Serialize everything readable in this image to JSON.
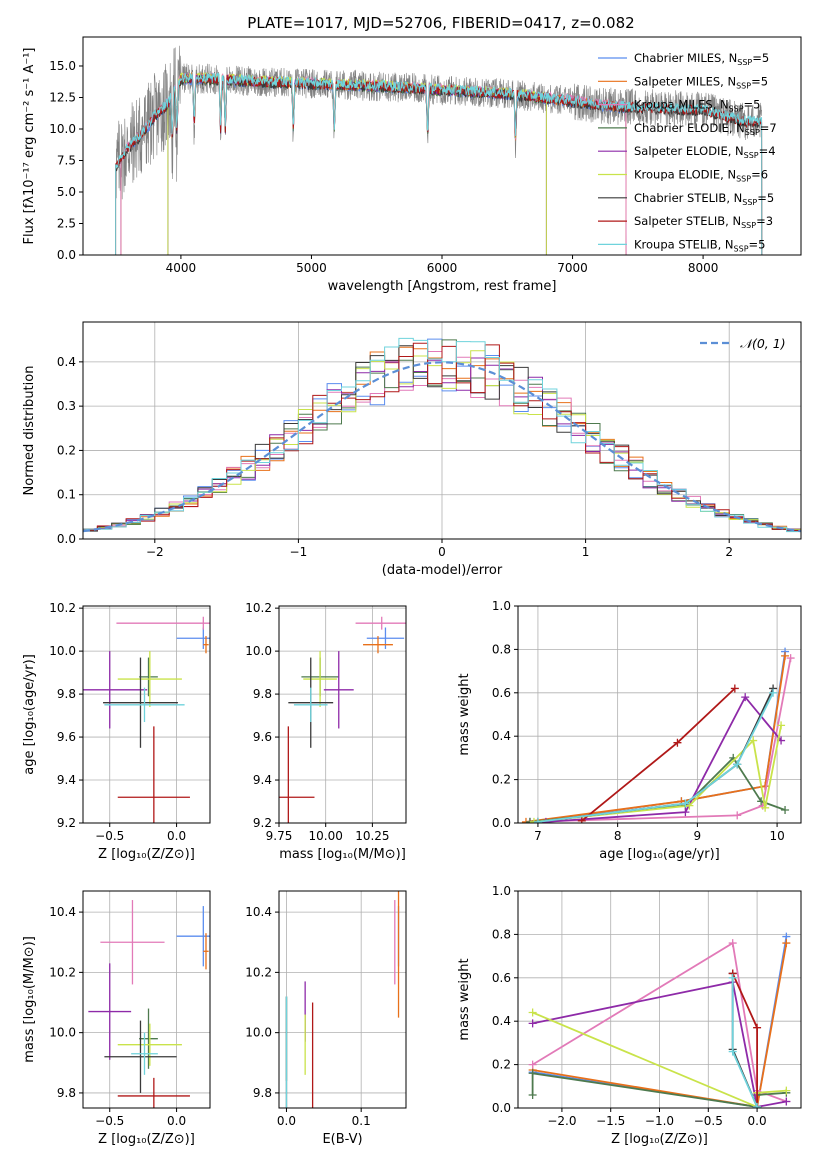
{
  "figure_title": "PLATE=1017, MJD=52706, FIBERID=0417, z=0.082",
  "palette": {
    "Chabrier MILES": "#5b8def",
    "Salpeter MILES": "#e8701a",
    "Kroupa MILES": "#e27ab8",
    "Chabrier ELODIE": "#4e7a4e",
    "Salpeter ELODIE": "#8e2aa8",
    "Kroupa ELODIE": "#c9e34a",
    "Chabrier STELIB": "#3a3a3a",
    "Salpeter STELIB": "#b01818",
    "Kroupa STELIB": "#6fd3dc",
    "data_gray": "#808080",
    "normal_curve": "#5b8fd6",
    "grid": "#b0b0b0"
  },
  "chart_data": [
    {
      "id": "spectrum",
      "type": "line",
      "xlabel": "wavelength [Angstrom, rest frame]",
      "ylabel": "Flux [fλ10⁻¹⁷ erg cm⁻² s⁻¹ A⁻¹]",
      "xlim": [
        3250,
        8750
      ],
      "ylim": [
        0,
        17.3
      ],
      "xticks": [
        4000,
        5000,
        6000,
        7000,
        8000
      ],
      "yticks": [
        0.0,
        2.5,
        5.0,
        7.5,
        10.0,
        12.5,
        15.0
      ],
      "grid": false,
      "legend_position": "top-right",
      "legend": [
        {
          "label": "Chabrier MILES, N",
          "sub": "SSP",
          "suffix": "=5",
          "color": "#5b8def"
        },
        {
          "label": "Salpeter MILES, N",
          "sub": "SSP",
          "suffix": "=5",
          "color": "#e8701a"
        },
        {
          "label": "Kroupa MILES, N",
          "sub": "SSP",
          "suffix": "=5",
          "color": "#e27ab8"
        },
        {
          "label": "Chabrier ELODIE, N",
          "sub": "SSP",
          "suffix": "=7",
          "color": "#4e7a4e"
        },
        {
          "label": "Salpeter ELODIE, N",
          "sub": "SSP",
          "suffix": "=4",
          "color": "#8e2aa8"
        },
        {
          "label": "Kroupa ELODIE, N",
          "sub": "SSP",
          "suffix": "=6",
          "color": "#c9e34a"
        },
        {
          "label": "Chabrier STELIB, N",
          "sub": "SSP",
          "suffix": "=5",
          "color": "#3a3a3a"
        },
        {
          "label": "Salpeter STELIB, N",
          "sub": "SSP",
          "suffix": "=3",
          "color": "#b01818"
        },
        {
          "label": "Kroupa STELIB, N",
          "sub": "SSP",
          "suffix": "=5",
          "color": "#6fd3dc"
        }
      ],
      "continuum": [
        [
          3500,
          7.0
        ],
        [
          3600,
          8.6
        ],
        [
          3700,
          9.6
        ],
        [
          3800,
          11.0
        ],
        [
          3900,
          12.0
        ],
        [
          4000,
          14.0
        ],
        [
          4200,
          14.0
        ],
        [
          4500,
          13.8
        ],
        [
          5000,
          13.6
        ],
        [
          5500,
          13.4
        ],
        [
          6000,
          13.1
        ],
        [
          6500,
          12.8
        ],
        [
          7000,
          12.2
        ],
        [
          7300,
          11.8
        ],
        [
          7500,
          11.7
        ],
        [
          8000,
          11.5
        ],
        [
          8300,
          10.6
        ],
        [
          8450,
          10.6
        ]
      ],
      "data_spectrum_range": [
        3500,
        8450
      ],
      "model_ranges": {
        "MILES": [
          3540,
          7410
        ],
        "ELODIE": [
          3900,
          6800
        ],
        "STELIB": [
          3500,
          8450
        ]
      },
      "absorption_lines": [
        3934,
        3969,
        4102,
        4304,
        4340,
        4861,
        5175,
        5890,
        6563,
        8500,
        8542,
        8662
      ]
    },
    {
      "id": "residuals",
      "type": "bar",
      "xlabel": "(data-model)/error",
      "ylabel": "Normed distribution",
      "xlim": [
        -2.5,
        2.5
      ],
      "ylim": [
        0,
        0.49
      ],
      "xticks": [
        -2,
        -1,
        0,
        1,
        2
      ],
      "yticks": [
        0.0,
        0.1,
        0.2,
        0.3,
        0.4
      ],
      "grid": true,
      "legend_position": "top-right",
      "legend_label": "𝒩(0, 1)",
      "normal_mean": 0,
      "normal_sigma": 1,
      "bin_width": 0.1,
      "bin_start": -2.5
    },
    {
      "id": "age_vs_Z",
      "type": "scatter",
      "xlabel": "Z [log₁₀(Z/Z⊙)]",
      "ylabel": "age  [log₁₀(age/yr)]",
      "xlim": [
        -0.7,
        0.25
      ],
      "ylim": [
        9.2,
        10.21
      ],
      "xticks": [
        -0.5,
        0.0
      ],
      "yticks": [
        9.2,
        9.4,
        9.6,
        9.8,
        10.0,
        10.2
      ],
      "grid": true,
      "points": [
        {
          "model": "Chabrier MILES",
          "x": 0.2,
          "y": 10.06,
          "xerr": 0.2,
          "yerr": 0.05
        },
        {
          "model": "Salpeter MILES",
          "x": 0.22,
          "y": 10.03,
          "xerr": 0.02,
          "yerr": 0.04
        },
        {
          "model": "Kroupa MILES",
          "x": 0.2,
          "y": 10.13,
          "xerr": 0.65,
          "yerr": 0.03
        },
        {
          "model": "Chabrier ELODIE",
          "x": -0.21,
          "y": 9.88,
          "xerr": 0.07,
          "yerr": 0.09
        },
        {
          "model": "Salpeter ELODIE",
          "x": -0.5,
          "y": 9.82,
          "xerr": 0.28,
          "yerr": 0.18
        },
        {
          "model": "Kroupa ELODIE",
          "x": -0.2,
          "y": 9.87,
          "xerr": 0.24,
          "yerr": 0.13
        },
        {
          "model": "Chabrier STELIB",
          "x": -0.27,
          "y": 9.76,
          "xerr": 0.28,
          "yerr": 0.21
        },
        {
          "model": "Salpeter STELIB",
          "x": -0.17,
          "y": 9.32,
          "xerr": 0.27,
          "yerr": 0.33
        },
        {
          "model": "Kroupa STELIB",
          "x": -0.24,
          "y": 9.75,
          "xerr": 0.3,
          "yerr": 0.08
        }
      ]
    },
    {
      "id": "age_vs_mass",
      "type": "scatter",
      "xlabel": "mass [log₁₀(M/M⊙)]",
      "ylabel": "",
      "xlim": [
        9.75,
        10.43
      ],
      "ylim": [
        9.2,
        10.21
      ],
      "xticks": [
        9.75,
        10.0,
        10.25
      ],
      "yticks": [
        9.2,
        9.4,
        9.6,
        9.8,
        10.0,
        10.2
      ],
      "grid": true,
      "points": [
        {
          "model": "Chabrier MILES",
          "x": 10.32,
          "y": 10.06,
          "xerr": 0.1,
          "yerr": 0.05
        },
        {
          "model": "Salpeter MILES",
          "x": 10.28,
          "y": 10.03,
          "xerr": 0.08,
          "yerr": 0.04
        },
        {
          "model": "Kroupa MILES",
          "x": 10.3,
          "y": 10.13,
          "xerr": 0.14,
          "yerr": 0.03
        },
        {
          "model": "Chabrier ELODIE",
          "x": 9.97,
          "y": 9.88,
          "xerr": 0.1,
          "yerr": 0.09
        },
        {
          "model": "Salpeter ELODIE",
          "x": 10.07,
          "y": 9.82,
          "xerr": 0.08,
          "yerr": 0.18
        },
        {
          "model": "Kroupa ELODIE",
          "x": 9.97,
          "y": 9.87,
          "xerr": 0.09,
          "yerr": 0.13
        },
        {
          "model": "Chabrier STELIB",
          "x": 9.92,
          "y": 9.76,
          "xerr": 0.12,
          "yerr": 0.21
        },
        {
          "model": "Salpeter STELIB",
          "x": 9.8,
          "y": 9.32,
          "xerr": 0.14,
          "yerr": 0.33
        },
        {
          "model": "Kroupa STELIB",
          "x": 9.92,
          "y": 9.75,
          "xerr": 0.09,
          "yerr": 0.08
        }
      ]
    },
    {
      "id": "weight_vs_age",
      "type": "line",
      "xlabel": "age  [log₁₀(age/yr)]",
      "ylabel": "mass weight",
      "xlim": [
        6.75,
        10.3
      ],
      "ylim": [
        0,
        1.0
      ],
      "xticks": [
        7,
        8,
        9,
        10
      ],
      "yticks": [
        0.0,
        0.2,
        0.4,
        0.6,
        0.8,
        1.0
      ],
      "grid": true,
      "series": [
        {
          "model": "Chabrier MILES",
          "x": [
            6.9,
            8.8,
            9.85,
            10.1
          ],
          "y": [
            0.005,
            0.1,
            0.17,
            0.79
          ]
        },
        {
          "model": "Salpeter MILES",
          "x": [
            6.85,
            8.8,
            9.85,
            10.1
          ],
          "y": [
            0.005,
            0.1,
            0.17,
            0.77
          ]
        },
        {
          "model": "Kroupa MILES",
          "x": [
            6.9,
            9.5,
            9.82,
            10.17
          ],
          "y": [
            0.005,
            0.035,
            0.08,
            0.76
          ]
        },
        {
          "model": "Chabrier ELODIE",
          "x": [
            6.9,
            8.85,
            9.45,
            9.8,
            10.1
          ],
          "y": [
            0.005,
            0.08,
            0.3,
            0.1,
            0.06
          ]
        },
        {
          "model": "Salpeter ELODIE",
          "x": [
            7.1,
            8.85,
            9.6,
            10.05
          ],
          "y": [
            0.005,
            0.05,
            0.58,
            0.38
          ]
        },
        {
          "model": "Kroupa ELODIE",
          "x": [
            6.95,
            8.9,
            9.7,
            9.85,
            10.05
          ],
          "y": [
            0.005,
            0.08,
            0.38,
            0.07,
            0.45
          ]
        },
        {
          "model": "Chabrier STELIB",
          "x": [
            7.0,
            8.85,
            9.5,
            9.95
          ],
          "y": [
            0.005,
            0.09,
            0.27,
            0.62
          ]
        },
        {
          "model": "Salpeter STELIB",
          "x": [
            7.55,
            8.75,
            9.47
          ],
          "y": [
            0.01,
            0.37,
            0.62
          ]
        },
        {
          "model": "Kroupa STELIB",
          "x": [
            7.0,
            8.85,
            9.5,
            9.95
          ],
          "y": [
            0.005,
            0.09,
            0.27,
            0.6
          ]
        }
      ]
    },
    {
      "id": "mass_vs_Z",
      "type": "scatter",
      "xlabel": "Z [log₁₀(Z/Z⊙)]",
      "ylabel": "mass [log₁₀(M/M⊙)]",
      "xlim": [
        -0.7,
        0.25
      ],
      "ylim": [
        9.75,
        10.47
      ],
      "xticks": [
        -0.5,
        0.0
      ],
      "yticks": [
        9.8,
        10.0,
        10.2,
        10.4
      ],
      "grid": true,
      "points": [
        {
          "model": "Chabrier MILES",
          "x": 0.2,
          "y": 10.32,
          "xerr": 0.2,
          "yerr": 0.1
        },
        {
          "model": "Salpeter MILES",
          "x": 0.22,
          "y": 10.27,
          "xerr": 0.02,
          "yerr": 0.06
        },
        {
          "model": "Kroupa MILES",
          "x": -0.33,
          "y": 10.3,
          "xerr": 0.24,
          "yerr": 0.14
        },
        {
          "model": "Chabrier ELODIE",
          "x": -0.21,
          "y": 9.98,
          "xerr": 0.07,
          "yerr": 0.1
        },
        {
          "model": "Salpeter ELODIE",
          "x": -0.5,
          "y": 10.07,
          "xerr": 0.16,
          "yerr": 0.16
        },
        {
          "model": "Kroupa ELODIE",
          "x": -0.2,
          "y": 9.96,
          "xerr": 0.24,
          "yerr": 0.07
        },
        {
          "model": "Chabrier STELIB",
          "x": -0.27,
          "y": 9.92,
          "xerr": 0.27,
          "yerr": 0.12
        },
        {
          "model": "Salpeter STELIB",
          "x": -0.17,
          "y": 9.79,
          "xerr": 0.27,
          "yerr": 0.06
        },
        {
          "model": "Kroupa STELIB",
          "x": -0.24,
          "y": 9.93,
          "xerr": 0.1,
          "yerr": 0.07
        }
      ]
    },
    {
      "id": "mass_vs_ebv",
      "type": "scatter",
      "xlabel": "E(B-V)",
      "ylabel": "",
      "xlim": [
        -0.01,
        0.16
      ],
      "ylim": [
        9.75,
        10.47
      ],
      "xticks": [
        0.0,
        0.1
      ],
      "yticks": [
        9.8,
        10.0,
        10.2,
        10.4
      ],
      "grid": true,
      "points": [
        {
          "model": "Chabrier MILES",
          "x": 0.15,
          "y": 10.32,
          "yerr": 0.1
        },
        {
          "model": "Salpeter MILES",
          "x": 0.15,
          "y": 10.27,
          "yerr": 0.22
        },
        {
          "model": "Kroupa MILES",
          "x": 0.145,
          "y": 10.3,
          "yerr": 0.14
        },
        {
          "model": "Chabrier ELODIE",
          "x": 0.0,
          "y": 9.98,
          "yerr": 0.14
        },
        {
          "model": "Salpeter ELODIE",
          "x": 0.025,
          "y": 10.07,
          "yerr": 0.1
        },
        {
          "model": "Kroupa ELODIE",
          "x": 0.025,
          "y": 9.96,
          "yerr": 0.1
        },
        {
          "model": "Chabrier STELIB",
          "x": 0.0,
          "y": 9.92,
          "yerr": 0.2
        },
        {
          "model": "Salpeter STELIB",
          "x": 0.035,
          "y": 9.92,
          "yerr": 0.18
        },
        {
          "model": "Kroupa STELIB",
          "x": 0.0,
          "y": 9.93,
          "yerr": 0.19
        }
      ]
    },
    {
      "id": "weight_vs_Z",
      "type": "line",
      "xlabel": "Z [log₁₀(Z/Z⊙)]",
      "ylabel": "mass weight",
      "xlim": [
        -2.45,
        0.45
      ],
      "ylim": [
        0,
        1.0
      ],
      "xticks": [
        -2.0,
        -1.5,
        -1.0,
        -0.5,
        0.0
      ],
      "yticks": [
        0.0,
        0.2,
        0.4,
        0.6,
        0.8,
        1.0
      ],
      "grid": true,
      "series": [
        {
          "model": "Chabrier MILES",
          "x": [
            -2.3,
            0.0,
            0.3
          ],
          "y": [
            0.165,
            0.005,
            0.79
          ]
        },
        {
          "model": "Salpeter MILES",
          "x": [
            -2.3,
            0.0,
            0.3
          ],
          "y": [
            0.175,
            0.005,
            0.76
          ]
        },
        {
          "model": "Kroupa MILES",
          "x": [
            -2.3,
            -0.25,
            0.0,
            0.3
          ],
          "y": [
            0.2,
            0.76,
            0.08,
            0.03
          ]
        },
        {
          "model": "Chabrier ELODIE",
          "x": [
            -2.3,
            -2.3,
            0.0,
            0.0,
            0.3
          ],
          "y": [
            0.06,
            0.16,
            0.005,
            0.06,
            0.07
          ]
        },
        {
          "model": "Salpeter ELODIE",
          "x": [
            -2.3,
            -0.25,
            0.0,
            0.3
          ],
          "y": [
            0.39,
            0.58,
            0.005,
            0.03
          ]
        },
        {
          "model": "Kroupa ELODIE",
          "x": [
            -2.3,
            0.0,
            0.0,
            0.3
          ],
          "y": [
            0.44,
            0.005,
            0.07,
            0.08
          ]
        },
        {
          "model": "Chabrier STELIB",
          "x": [
            -0.25,
            -0.25,
            0.0
          ],
          "y": [
            0.62,
            0.27,
            0.005
          ]
        },
        {
          "model": "Salpeter STELIB",
          "x": [
            -0.25,
            0.0,
            0.0
          ],
          "y": [
            0.62,
            0.37,
            0.005
          ]
        },
        {
          "model": "Kroupa STELIB",
          "x": [
            -0.25,
            -0.25,
            0.0
          ],
          "y": [
            0.6,
            0.26,
            0.005
          ]
        }
      ]
    }
  ]
}
